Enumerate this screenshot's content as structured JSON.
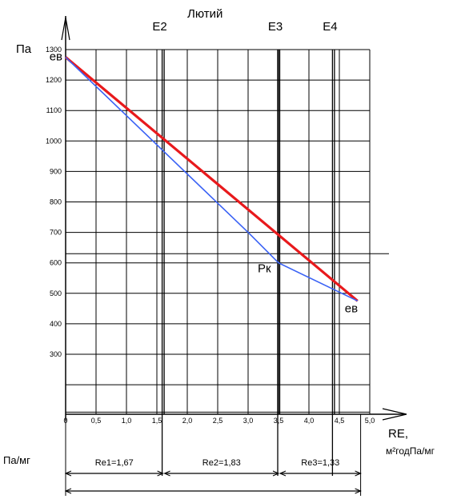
{
  "chart_data": {
    "type": "line",
    "title": "Лютий",
    "y_axis_label": "Па",
    "x_axis_label_1": "RE,",
    "x_axis_label_2": "м²годПа/мг",
    "bottom_left_label": "Па/мг",
    "ylim": [
      200,
      1300
    ],
    "xlim": [
      0,
      5
    ],
    "y_ticks": [
      {
        "value": 1300,
        "label": "1300"
      },
      {
        "value": 1200,
        "label": "1200"
      },
      {
        "value": 1100,
        "label": "1100"
      },
      {
        "value": 1000,
        "label": "1000"
      },
      {
        "value": 900,
        "label": "900"
      },
      {
        "value": 800,
        "label": "800"
      },
      {
        "value": 700,
        "label": "700"
      },
      {
        "value": 600,
        "label": "600"
      },
      {
        "value": 500,
        "label": "500"
      },
      {
        "value": 400,
        "label": "400"
      },
      {
        "value": 300,
        "label": "300"
      }
    ],
    "x_ticks": [
      {
        "value": 0,
        "label": "0"
      },
      {
        "value": 0.5,
        "label": "0,5"
      },
      {
        "value": 1.0,
        "label": "1,0"
      },
      {
        "value": 1.5,
        "label": "1,5"
      },
      {
        "value": 2.0,
        "label": "2,0"
      },
      {
        "value": 2.5,
        "label": "2,5"
      },
      {
        "value": 3.0,
        "label": "3,0"
      },
      {
        "value": 3.5,
        "label": "3,5"
      },
      {
        "value": 4.0,
        "label": "4,0"
      },
      {
        "value": 4.5,
        "label": "4,5"
      },
      {
        "value": 5.0,
        "label": "5,0"
      }
    ],
    "layer_boundaries": [
      {
        "label": "E2",
        "x": 1.6
      },
      {
        "label": "E3",
        "x": 3.5
      },
      {
        "label": "E4",
        "x": 4.4
      }
    ],
    "segments": [
      {
        "label": "Re1=1,67",
        "from": 0,
        "to": 1.6
      },
      {
        "label": "Re2=1,83",
        "from": 1.6,
        "to": 3.5
      },
      {
        "label": "Re3=1,33",
        "from": 3.5,
        "to": 4.85
      }
    ],
    "series": [
      {
        "color": "#e8191c",
        "points": [
          [
            0,
            1275
          ],
          [
            4.8,
            475
          ]
        ]
      },
      {
        "color": "#3a62f5",
        "points": [
          [
            0,
            1275
          ],
          [
            3.0,
            700
          ],
          [
            3.5,
            600
          ],
          [
            4.8,
            475
          ]
        ]
      }
    ],
    "annotations": [
      {
        "text": "ев",
        "x": 0,
        "y": 1275
      },
      {
        "text": "Рк",
        "x": 3.5,
        "y": 600
      },
      {
        "text": "ев",
        "x": 4.8,
        "y": 475
      }
    ],
    "horizontal_marker": 630
  }
}
